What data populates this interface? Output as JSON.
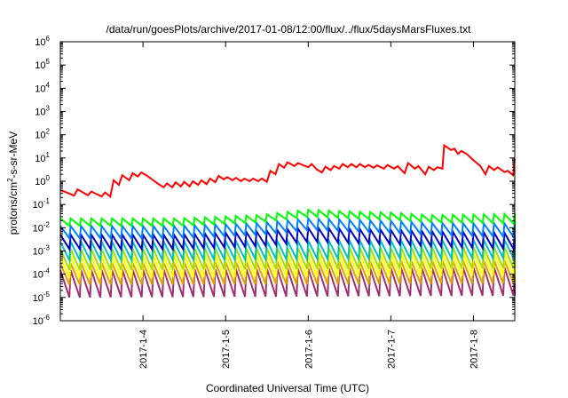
{
  "chart_data": {
    "type": "line",
    "title": "/data/run/goesPlots/archive/2017-01-08/12:00/flux/../flux/5daysMarsFluxes.txt",
    "xlabel": "Coordinated Universal Time (UTC)",
    "ylabel": "protons/cm²-s-sr-MeV",
    "ylabel_parts": {
      "base": "protons/cm",
      "sup": "2",
      "rest": "-s-sr-MeV"
    },
    "yscale": "log",
    "ylim": [
      1e-06,
      1000000.0
    ],
    "yticks": [
      {
        "base": "10",
        "exp": "-6",
        "value": 1e-06
      },
      {
        "base": "10",
        "exp": "-5",
        "value": 1e-05
      },
      {
        "base": "10",
        "exp": "-4",
        "value": 0.0001
      },
      {
        "base": "10",
        "exp": "-3",
        "value": 0.001
      },
      {
        "base": "10",
        "exp": "-2",
        "value": 0.01
      },
      {
        "base": "10",
        "exp": "-1",
        "value": 0.1
      },
      {
        "base": "10",
        "exp": "0",
        "value": 1
      },
      {
        "base": "10",
        "exp": "1",
        "value": 10
      },
      {
        "base": "10",
        "exp": "2",
        "value": 100
      },
      {
        "base": "10",
        "exp": "3",
        "value": 1000
      },
      {
        "base": "10",
        "exp": "4",
        "value": 10000
      },
      {
        "base": "10",
        "exp": "5",
        "value": 100000
      },
      {
        "base": "10",
        "exp": "6",
        "value": 1000000
      }
    ],
    "xlim": [
      "2017-01-03T00:00",
      "2017-01-08T12:00"
    ],
    "xticks": [
      {
        "label": "2017-1-4",
        "value": "2017-01-04T00:00"
      },
      {
        "label": "2017-1-5",
        "value": "2017-01-05T00:00"
      },
      {
        "label": "2017-1-6",
        "value": "2017-01-06T00:00"
      },
      {
        "label": "2017-1-7",
        "value": "2017-01-07T00:00"
      },
      {
        "label": "2017-1-8",
        "value": "2017-01-08T00:00"
      }
    ],
    "grid": false,
    "legend": "none",
    "series": [
      {
        "color": "#ff0000",
        "points": [
          [
            "2017-01-03T00:00",
            0.42
          ],
          [
            "2017-01-03T02:00",
            0.32
          ],
          [
            "2017-01-03T04:00",
            0.24
          ],
          [
            "2017-01-03T05:00",
            0.45
          ],
          [
            "2017-01-03T08:00",
            0.25
          ],
          [
            "2017-01-03T09:00",
            0.36
          ],
          [
            "2017-01-03T12:00",
            0.22
          ],
          [
            "2017-01-03T13:00",
            0.33
          ],
          [
            "2017-01-03T14:30",
            0.22
          ],
          [
            "2017-01-03T15:30",
            1.1
          ],
          [
            "2017-01-03T17:00",
            0.7
          ],
          [
            "2017-01-03T18:00",
            1.8
          ],
          [
            "2017-01-03T20:00",
            1.1
          ],
          [
            "2017-01-03T21:00",
            2.2
          ],
          [
            "2017-01-03T22:30",
            1.6
          ],
          [
            "2017-01-03T23:30",
            2.4
          ],
          [
            "2017-01-04T01:00",
            1.8
          ],
          [
            "2017-01-04T04:00",
            0.85
          ],
          [
            "2017-01-04T06:00",
            0.55
          ],
          [
            "2017-01-04T07:00",
            0.8
          ],
          [
            "2017-01-04T08:30",
            0.55
          ],
          [
            "2017-01-04T09:30",
            0.9
          ],
          [
            "2017-01-04T11:00",
            0.6
          ],
          [
            "2017-01-04T12:00",
            0.95
          ],
          [
            "2017-01-04T13:30",
            0.6
          ],
          [
            "2017-01-04T14:30",
            1.0
          ],
          [
            "2017-01-04T16:00",
            0.7
          ],
          [
            "2017-01-04T17:00",
            1.1
          ],
          [
            "2017-01-04T18:30",
            0.75
          ],
          [
            "2017-01-04T19:30",
            1.3
          ],
          [
            "2017-01-04T21:00",
            0.9
          ],
          [
            "2017-01-04T22:00",
            1.7
          ],
          [
            "2017-01-04T23:30",
            1.2
          ],
          [
            "2017-01-05T00:30",
            1.5
          ],
          [
            "2017-01-05T02:00",
            1.1
          ],
          [
            "2017-01-05T03:00",
            1.4
          ],
          [
            "2017-01-05T04:30",
            1.0
          ],
          [
            "2017-01-05T05:30",
            1.3
          ],
          [
            "2017-01-05T07:00",
            1.0
          ],
          [
            "2017-01-05T08:00",
            1.3
          ],
          [
            "2017-01-05T09:30",
            1.0
          ],
          [
            "2017-01-05T10:30",
            1.3
          ],
          [
            "2017-01-05T12:00",
            0.95
          ],
          [
            "2017-01-05T13:00",
            2.8
          ],
          [
            "2017-01-05T14:30",
            2.0
          ],
          [
            "2017-01-05T15:30",
            5.5
          ],
          [
            "2017-01-05T17:00",
            3.8
          ],
          [
            "2017-01-05T18:00",
            6.5
          ],
          [
            "2017-01-05T20:00",
            4.5
          ],
          [
            "2017-01-05T21:00",
            6.0
          ],
          [
            "2017-01-06T00:00",
            4.0
          ],
          [
            "2017-01-06T01:00",
            5.5
          ],
          [
            "2017-01-06T02:30",
            3.2
          ],
          [
            "2017-01-06T04:00",
            2.4
          ],
          [
            "2017-01-06T05:00",
            4.2
          ],
          [
            "2017-01-06T06:30",
            3.0
          ],
          [
            "2017-01-06T07:30",
            4.5
          ],
          [
            "2017-01-06T09:00",
            3.5
          ],
          [
            "2017-01-06T10:00",
            5.5
          ],
          [
            "2017-01-06T11:30",
            4.0
          ],
          [
            "2017-01-06T12:30",
            5.5
          ],
          [
            "2017-01-06T14:00",
            4.0
          ],
          [
            "2017-01-06T15:00",
            5.5
          ],
          [
            "2017-01-06T16:30",
            4.0
          ],
          [
            "2017-01-06T17:30",
            5.0
          ],
          [
            "2017-01-06T19:00",
            3.8
          ],
          [
            "2017-01-06T20:00",
            4.8
          ],
          [
            "2017-01-06T22:00",
            3.5
          ],
          [
            "2017-01-06T23:00",
            5.0
          ],
          [
            "2017-01-07T01:00",
            3.5
          ],
          [
            "2017-01-07T02:00",
            4.5
          ],
          [
            "2017-01-07T04:00",
            2.2
          ],
          [
            "2017-01-07T05:00",
            6.0
          ],
          [
            "2017-01-07T07:00",
            3.5
          ],
          [
            "2017-01-07T08:00",
            4.5
          ],
          [
            "2017-01-07T10:00",
            2.0
          ],
          [
            "2017-01-07T11:00",
            4.2
          ],
          [
            "2017-01-07T12:30",
            3.0
          ],
          [
            "2017-01-07T13:30",
            4.0
          ],
          [
            "2017-01-07T15:00",
            3.5
          ],
          [
            "2017-01-07T15:30",
            35.0
          ],
          [
            "2017-01-07T17:30",
            22.0
          ],
          [
            "2017-01-07T18:30",
            25.0
          ],
          [
            "2017-01-07T19:30",
            15.0
          ],
          [
            "2017-01-07T20:30",
            20.0
          ],
          [
            "2017-01-07T22:00",
            15.0
          ],
          [
            "2017-01-08T00:00",
            8.0
          ],
          [
            "2017-01-08T02:00",
            4.5
          ],
          [
            "2017-01-08T03:30",
            2.0
          ],
          [
            "2017-01-08T04:30",
            4.5
          ],
          [
            "2017-01-08T06:00",
            3.0
          ],
          [
            "2017-01-08T07:00",
            4.0
          ],
          [
            "2017-01-08T09:00",
            2.5
          ],
          [
            "2017-01-08T10:00",
            2.8
          ],
          [
            "2017-01-08T11:30",
            1.8
          ],
          [
            "2017-01-08T12:00",
            9.0
          ]
        ]
      },
      {
        "color": "#00ff00",
        "saw_period_hours": 3,
        "envelope_high": [
          [
            0,
            0.025
          ],
          [
            1.4,
            0.025
          ],
          [
            2.4,
            0.035
          ],
          [
            3.0,
            0.06
          ],
          [
            3.5,
            0.05
          ],
          [
            4.0,
            0.045
          ],
          [
            4.5,
            0.035
          ],
          [
            5.5,
            0.04
          ]
        ],
        "envelope_low": [
          [
            0,
            0.012
          ],
          [
            1.4,
            0.012
          ],
          [
            2.4,
            0.017
          ],
          [
            3.0,
            0.03
          ],
          [
            3.5,
            0.025
          ],
          [
            4.0,
            0.022
          ],
          [
            4.5,
            0.017
          ],
          [
            5.5,
            0.015
          ]
        ]
      },
      {
        "color": "#0080ff",
        "saw_period_hours": 3,
        "envelope_high": [
          [
            0,
            0.012
          ],
          [
            1.4,
            0.012
          ],
          [
            2.4,
            0.016
          ],
          [
            3.0,
            0.025
          ],
          [
            3.5,
            0.022
          ],
          [
            4.0,
            0.02
          ],
          [
            4.5,
            0.016
          ],
          [
            5.5,
            0.015
          ]
        ],
        "envelope_low": [
          [
            0,
            0.0035
          ],
          [
            1.4,
            0.0035
          ],
          [
            2.4,
            0.005
          ],
          [
            3.0,
            0.008
          ],
          [
            3.5,
            0.007
          ],
          [
            4.0,
            0.006
          ],
          [
            4.5,
            0.005
          ],
          [
            5.5,
            0.004
          ]
        ]
      },
      {
        "color": "#0000c0",
        "saw_period_hours": 3,
        "envelope_high": [
          [
            0,
            0.005
          ],
          [
            1.4,
            0.005
          ],
          [
            2.4,
            0.007
          ],
          [
            3.0,
            0.01
          ],
          [
            3.5,
            0.009
          ],
          [
            4.0,
            0.008
          ],
          [
            4.5,
            0.007
          ],
          [
            5.5,
            0.006
          ]
        ],
        "envelope_low": [
          [
            0,
            0.0012
          ],
          [
            1.4,
            0.0012
          ],
          [
            2.4,
            0.0016
          ],
          [
            3.0,
            0.0025
          ],
          [
            3.5,
            0.0022
          ],
          [
            4.0,
            0.002
          ],
          [
            4.5,
            0.0016
          ],
          [
            5.5,
            0.0012
          ]
        ]
      },
      {
        "color": "#00c0c0",
        "saw_period_hours": 3,
        "envelope_high": [
          [
            0,
            0.0025
          ],
          [
            5.5,
            0.003
          ]
        ],
        "envelope_low": [
          [
            0,
            0.0004
          ],
          [
            5.5,
            0.0005
          ]
        ]
      },
      {
        "color": "#a0e000",
        "saw_period_hours": 3,
        "envelope_high": [
          [
            0,
            0.0012
          ],
          [
            5.5,
            0.0015
          ]
        ],
        "envelope_low": [
          [
            0,
            0.00015
          ],
          [
            5.5,
            0.00018
          ]
        ]
      },
      {
        "color": "#ffff00",
        "saw_period_hours": 3,
        "envelope_high": [
          [
            0,
            0.0006
          ],
          [
            5.5,
            0.0008
          ]
        ],
        "envelope_low": [
          [
            0,
            7e-05
          ],
          [
            5.5,
            9e-05
          ]
        ]
      },
      {
        "color": "#e0a000",
        "saw_period_hours": 3,
        "envelope_high": [
          [
            0,
            0.0003
          ],
          [
            5.5,
            0.0004
          ]
        ],
        "envelope_low": [
          [
            0,
            3.5e-05
          ],
          [
            5.5,
            4e-05
          ]
        ]
      },
      {
        "color": "#a03070",
        "saw_period_hours": 3,
        "envelope_high": [
          [
            0,
            0.00015
          ],
          [
            5.5,
            0.0002
          ]
        ],
        "envelope_low": [
          [
            0,
            1e-05
          ],
          [
            5.5,
            1.2e-05
          ]
        ]
      }
    ]
  }
}
